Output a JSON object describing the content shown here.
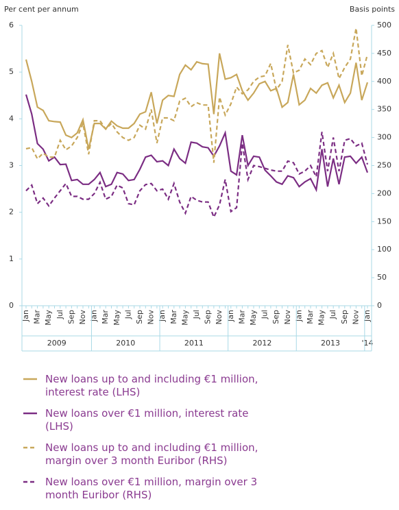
{
  "chart_data": {
    "type": "line",
    "y_label": "Per cent per annum",
    "y2_label": "Basis points",
    "categories": [
      "Jan",
      null,
      "Mar",
      null,
      "May",
      null,
      "Jul",
      null,
      "Sep",
      null,
      "Nov",
      null,
      "Jan",
      null,
      "Mar",
      null,
      "May",
      null,
      "Jul",
      null,
      "Sep",
      null,
      "Nov",
      null,
      "Jan",
      null,
      "Mar",
      null,
      "May",
      null,
      "Jul",
      null,
      "Sep",
      null,
      "Nov",
      null,
      "Jan",
      null,
      "Mar",
      null,
      "May",
      null,
      "Jul",
      null,
      "Sep",
      null,
      "Nov",
      null,
      "Jan",
      null,
      "Mar",
      null,
      "May",
      null,
      "Jul",
      null,
      "Sep",
      null,
      "Nov",
      null,
      "Jan"
    ],
    "year_groups": [
      "2009",
      "2010",
      "2011",
      "2012",
      "2013",
      "'14"
    ],
    "ylim": [
      0,
      6
    ],
    "yticks": [
      0,
      1,
      2,
      3,
      4,
      5,
      6
    ],
    "y2lim": [
      0,
      500
    ],
    "y2ticks": [
      0,
      50,
      100,
      150,
      200,
      250,
      300,
      350,
      400,
      450,
      500
    ],
    "series": [
      {
        "name": "New loans up to and including €1 million, interest rate (LHS)",
        "color": "#c8a75a",
        "dashed": false,
        "values": [
          5.27,
          4.8,
          4.25,
          4.18,
          3.96,
          3.94,
          3.93,
          3.65,
          3.6,
          3.7,
          3.98,
          3.35,
          3.9,
          3.9,
          3.78,
          3.95,
          3.85,
          3.8,
          3.8,
          3.9,
          4.1,
          4.15,
          4.57,
          3.9,
          4.4,
          4.5,
          4.48,
          4.95,
          5.15,
          5.05,
          5.22,
          5.18,
          5.17,
          4.1,
          5.4,
          4.85,
          4.88,
          4.95,
          4.6,
          4.4,
          4.55,
          4.75,
          4.8,
          4.6,
          4.65,
          4.25,
          4.35,
          4.95,
          4.3,
          4.4,
          4.65,
          4.55,
          4.72,
          4.77,
          4.45,
          4.72,
          4.35,
          4.55,
          5.2,
          4.4,
          4.78
        ]
      },
      {
        "name": "New loans over €1 million, interest rate (LHS)",
        "color": "#7b2d83",
        "dashed": false,
        "values": [
          4.52,
          4.1,
          3.47,
          3.35,
          3.1,
          3.18,
          3.02,
          3.03,
          2.68,
          2.7,
          2.6,
          2.6,
          2.7,
          2.85,
          2.55,
          2.6,
          2.85,
          2.82,
          2.68,
          2.7,
          2.92,
          3.18,
          3.22,
          3.08,
          3.1,
          3.0,
          3.35,
          3.15,
          3.05,
          3.5,
          3.48,
          3.4,
          3.38,
          3.2,
          3.42,
          3.7,
          2.88,
          2.8,
          3.65,
          3.0,
          3.2,
          3.18,
          2.9,
          2.78,
          2.65,
          2.6,
          2.78,
          2.74,
          2.55,
          2.65,
          2.72,
          2.48,
          3.35,
          2.55,
          3.15,
          2.6,
          3.18,
          3.2,
          3.05,
          3.18,
          2.85
        ]
      },
      {
        "name": "New loans up to and including €1 million, margin over 3 month Euribor (RHS)",
        "color": "#c8a75a",
        "dashed": true,
        "axis": "y2",
        "values": [
          280,
          282,
          262,
          272,
          265,
          265,
          295,
          278,
          285,
          300,
          325,
          270,
          330,
          330,
          315,
          325,
          310,
          300,
          295,
          300,
          322,
          315,
          350,
          290,
          335,
          335,
          330,
          365,
          370,
          355,
          362,
          358,
          358,
          255,
          372,
          340,
          360,
          390,
          378,
          385,
          400,
          408,
          410,
          432,
          385,
          400,
          465,
          415,
          420,
          440,
          430,
          450,
          455,
          425,
          450,
          405,
          425,
          440,
          495,
          410,
          448
        ]
      },
      {
        "name": "New loans over €1 million, margin over 3 month Euribor (RHS)",
        "color": "#7b2d83",
        "dashed": true,
        "axis": "y2",
        "values": [
          205,
          215,
          182,
          192,
          178,
          192,
          205,
          218,
          195,
          195,
          190,
          190,
          200,
          220,
          190,
          195,
          215,
          210,
          182,
          180,
          205,
          216,
          218,
          205,
          208,
          190,
          218,
          185,
          165,
          195,
          188,
          185,
          185,
          158,
          180,
          225,
          168,
          175,
          290,
          225,
          250,
          248,
          245,
          242,
          240,
          240,
          258,
          255,
          235,
          240,
          250,
          230,
          310,
          240,
          300,
          240,
          295,
          298,
          285,
          290,
          252
        ]
      }
    ]
  }
}
